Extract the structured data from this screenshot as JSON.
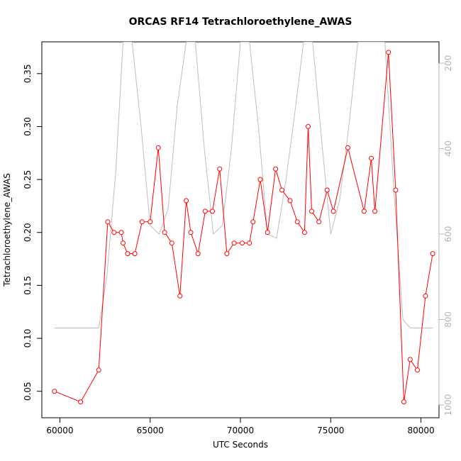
{
  "chart_data": {
    "type": "line",
    "title": "ORCAS RF14 Tetrachloroethylene_AWAS",
    "xlabel": "UTC Seconds",
    "ylabel": "Tetrachloroethylene_AWAS",
    "xlim": [
      59000,
      81000
    ],
    "ylim": [
      0.025,
      0.38
    ],
    "x_ticks": [
      60000,
      65000,
      70000,
      75000,
      80000
    ],
    "y_ticks": [
      0.05,
      0.1,
      0.15,
      0.2,
      0.25,
      0.3,
      0.35
    ],
    "x_tick_labels": [
      "60000",
      "65000",
      "70000",
      "75000",
      "80000"
    ],
    "y_tick_labels": [
      "0.05",
      "0.10",
      "0.15",
      "0.20",
      "0.25",
      "0.30",
      "0.35"
    ],
    "right_axis": {
      "reversed": true,
      "ylim": [
        1030,
        150
      ],
      "ticks": [
        200,
        400,
        600,
        800,
        1000
      ],
      "tick_labels": [
        "200",
        "400",
        "600",
        "800",
        "1000"
      ],
      "color": "#b4b4b4"
    },
    "grid": false,
    "series": [
      {
        "color": "#ff0000",
        "marker": "open-circle",
        "x": [
          59700,
          61150,
          62150,
          62650,
          63000,
          63400,
          63500,
          63750,
          64150,
          64550,
          65000,
          65450,
          65800,
          66200,
          66650,
          67000,
          67250,
          67650,
          68050,
          68450,
          68850,
          69250,
          69650,
          70100,
          70500,
          70700,
          71100,
          71500,
          71950,
          72300,
          72750,
          73150,
          73550,
          73750,
          73950,
          74350,
          74800,
          75150,
          75950,
          76850,
          77250,
          77450,
          78200,
          78600,
          79050,
          79400,
          79800,
          80250,
          80650
        ],
        "values": [
          0.05,
          0.04,
          0.07,
          0.21,
          0.2,
          0.2,
          0.19,
          0.18,
          0.18,
          0.21,
          0.21,
          0.28,
          0.2,
          0.19,
          0.14,
          0.23,
          0.2,
          0.18,
          0.22,
          0.22,
          0.26,
          0.18,
          0.19,
          0.19,
          0.19,
          0.21,
          0.25,
          0.2,
          0.26,
          0.24,
          0.23,
          0.21,
          0.2,
          0.3,
          0.22,
          0.21,
          0.24,
          0.22,
          0.28,
          0.22,
          0.27,
          0.22,
          0.37,
          0.24,
          0.04,
          0.08,
          0.07,
          0.14,
          0.18
        ]
      },
      {
        "color": "#bebebe",
        "axis": "right",
        "x": [
          59700,
          61100,
          62150,
          62600,
          63100,
          63500,
          64000,
          64500,
          65000,
          65500,
          66000,
          66500,
          67000,
          67500,
          68000,
          68500,
          69000,
          69500,
          70000,
          70500,
          71000,
          71500,
          72000,
          72500,
          73000,
          73500,
          74000,
          74500,
          75000,
          75500,
          76000,
          76500,
          77000,
          77500,
          78000,
          78500,
          79000,
          79400,
          80650
        ],
        "values": [
          820,
          820,
          820,
          700,
          450,
          150,
          150,
          350,
          580,
          600,
          540,
          300,
          150,
          150,
          400,
          600,
          580,
          400,
          150,
          150,
          350,
          600,
          610,
          480,
          320,
          150,
          150,
          380,
          600,
          520,
          350,
          150,
          150,
          150,
          150,
          500,
          800,
          820,
          820
        ]
      }
    ]
  }
}
